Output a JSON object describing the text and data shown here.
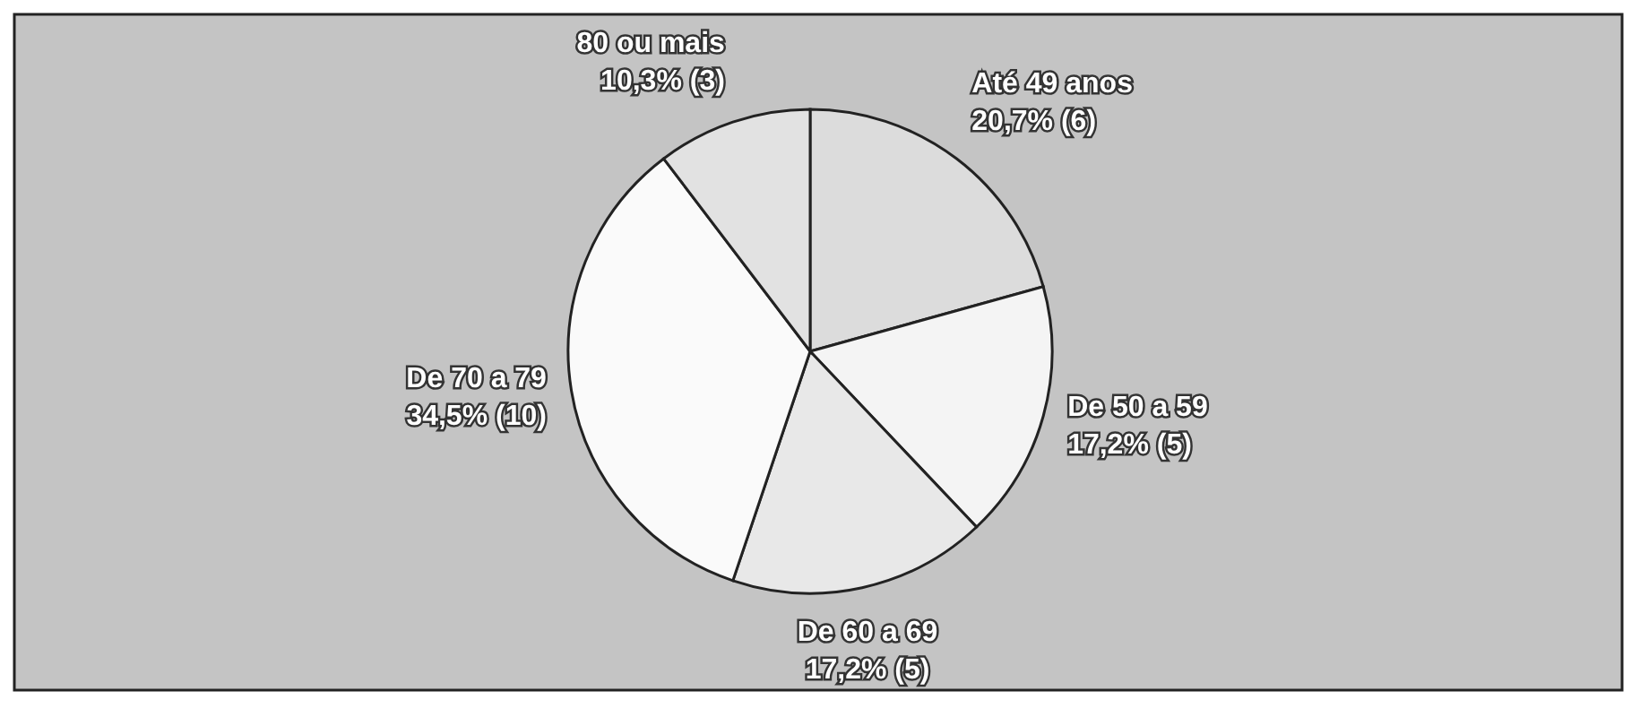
{
  "chart_data": {
    "type": "pie",
    "categories": [
      "Até 49 anos",
      "De 50 a 59",
      "De 60 a 69",
      "De 70 a 79",
      "80 ou mais"
    ],
    "values": [
      6,
      5,
      5,
      10,
      3
    ],
    "value_labels": [
      "20,7% (6)",
      "17,2% (5)",
      "17,2% (5)",
      "34,5% (10)",
      "10,3% (3)"
    ],
    "colors": [
      "#dcdcdc",
      "#f4f4f4",
      "#e8e8e8",
      "#fafafa",
      "#e2e2e2"
    ]
  }
}
